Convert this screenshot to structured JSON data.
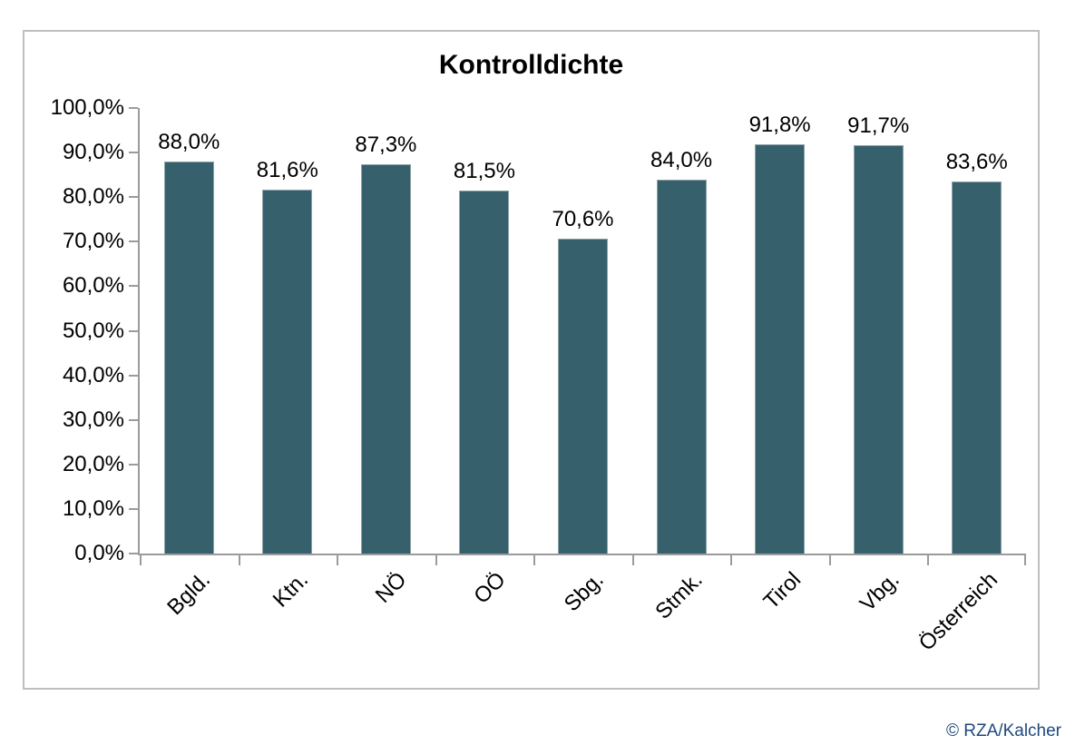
{
  "page": {
    "copyright": "© RZA/Kalcher",
    "colors": {
      "bar_fill": "#35606c",
      "bar_border": "#8ea4aa",
      "axis": "#9b9b9b",
      "frame_border": "#bfbfbf",
      "title_text": "#000000",
      "copyright_text": "#1f497d",
      "background": "#ffffff"
    }
  },
  "chart_data": {
    "type": "bar",
    "title": "Kontrolldichte",
    "xlabel": "",
    "ylabel": "",
    "categories": [
      "Bgld.",
      "Ktn.",
      "NÖ",
      "OÖ",
      "Sbg.",
      "Stmk.",
      "Tirol",
      "Vbg.",
      "Österreich"
    ],
    "values": [
      88.0,
      81.6,
      87.3,
      81.5,
      70.6,
      84.0,
      91.8,
      91.7,
      83.6
    ],
    "data_labels": [
      "88,0%",
      "81,6%",
      "87,3%",
      "81,5%",
      "70,6%",
      "84,0%",
      "91,8%",
      "91,7%",
      "83,6%"
    ],
    "y_tick_labels": [
      "0,0%",
      "10,0%",
      "20,0%",
      "30,0%",
      "40,0%",
      "50,0%",
      "60,0%",
      "70,0%",
      "80,0%",
      "90,0%",
      "100,0%"
    ],
    "y_tick_values": [
      0,
      10,
      20,
      30,
      40,
      50,
      60,
      70,
      80,
      90,
      100
    ],
    "ylim": [
      0,
      100
    ],
    "grid": false,
    "legend_position": "none",
    "series_name": "Kontrolldichte",
    "data_label_format": "0,0%"
  }
}
